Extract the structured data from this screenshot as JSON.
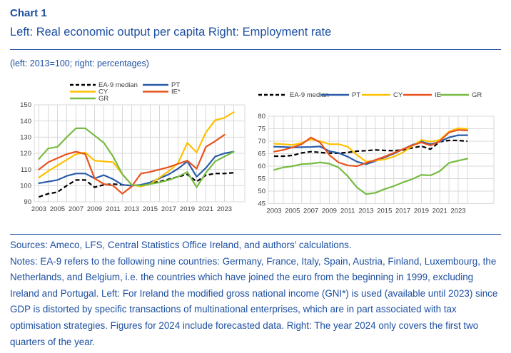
{
  "header": {
    "chart_label": "Chart 1",
    "title": "Left: Real economic output per capita Right: Employment rate",
    "units_note": "(left: 2013=100; right: percentages)"
  },
  "footer": {
    "sources": "Sources: Ameco, LFS, Central Statistics Office Ireland, and authors’ calculations.",
    "notes": "Notes: EA-9 refers to the following nine countries: Germany, France, Italy, Spain, Austria, Finland, Luxembourg, the Netherlands, and Belgium, i.e. the countries which have joined the euro from the beginning in 1999, excluding Ireland and Portugal. Left: For Ireland the modified gross national income (GNI*) is used (available until 2023) since GDP is distorted by specific transactions of multinational enterprises, which are in part associated with tax optimisation strategies. Figures for 2024 include forecasted data. Right: The year 2024 only covers the first two quarters of the year."
  },
  "style_colors": {
    "heading_blue": "#1d4fa0",
    "grid": "#d9d9d9",
    "tick_text": "#404040"
  },
  "chart_data": [
    {
      "type": "line",
      "title": "Real economic output per capita",
      "ylabel": "index (2013=100)",
      "ylim": [
        90,
        150
      ],
      "yticks": [
        90,
        100,
        110,
        120,
        130,
        140,
        150
      ],
      "x": [
        2003,
        2004,
        2005,
        2006,
        2007,
        2008,
        2009,
        2010,
        2011,
        2012,
        2013,
        2014,
        2015,
        2016,
        2017,
        2018,
        2019,
        2020,
        2021,
        2022,
        2023,
        2024
      ],
      "xtick_labels": [
        "2003",
        "2005",
        "2007",
        "2009",
        "2011",
        "2013",
        "2015",
        "2017",
        "2019",
        "2021",
        "2023"
      ],
      "grid": true,
      "legend_position": "top-two-columns",
      "series": [
        {
          "name": "EA-9 median",
          "color": "#000000",
          "dashed": true,
          "values": [
            93,
            95,
            96,
            100,
            103.5,
            103.5,
            99,
            100.5,
            101,
            100.5,
            100,
            100.5,
            101.5,
            102.5,
            104,
            105.5,
            107,
            102.5,
            106.5,
            107.5,
            107.5,
            108
          ]
        },
        {
          "name": "PT",
          "color": "#2a5caa",
          "dashed": false,
          "values": [
            101.5,
            102.5,
            103.5,
            106,
            107.5,
            107.5,
            104.5,
            106.5,
            104,
            100.5,
            100,
            100.5,
            102,
            104.5,
            107,
            110.5,
            115,
            105.5,
            111,
            118,
            120,
            121
          ]
        },
        {
          "name": "CY",
          "color": "#ffc000",
          "dashed": false,
          "values": [
            105,
            109,
            112.5,
            116,
            119.5,
            120.5,
            115.5,
            115,
            114.5,
            107,
            100.5,
            99.5,
            101,
            105,
            109,
            114,
            126.5,
            120.5,
            133,
            140.5,
            142,
            145.5
          ]
        },
        {
          "name": "IE*",
          "color": "#e8531e",
          "dashed": false,
          "values": [
            110,
            114.5,
            117,
            119.5,
            121,
            119.5,
            104.5,
            101,
            100,
            95,
            99.5,
            107.5,
            108.5,
            110,
            111.5,
            113.5,
            115.5,
            110.5,
            124,
            127.5,
            131.5,
            null
          ]
        },
        {
          "name": "GR",
          "color": "#77bc42",
          "dashed": false,
          "values": [
            116.5,
            123,
            124,
            130,
            135.5,
            135.5,
            131,
            126.5,
            118,
            107,
            100.5,
            100,
            101,
            102,
            103.5,
            105.5,
            108.5,
            99,
            108,
            115,
            118,
            121
          ]
        }
      ]
    },
    {
      "type": "line",
      "title": "Employment rate",
      "ylabel": "percentages",
      "ylim": [
        45,
        80
      ],
      "yticks": [
        45,
        50,
        55,
        60,
        65,
        70,
        75,
        80
      ],
      "x": [
        2003,
        2004,
        2005,
        2006,
        2007,
        2008,
        2009,
        2010,
        2011,
        2012,
        2013,
        2014,
        2015,
        2016,
        2017,
        2018,
        2019,
        2020,
        2021,
        2022,
        2023,
        2024
      ],
      "xtick_labels": [
        "2003",
        "2005",
        "2007",
        "2009",
        "2011",
        "2013",
        "2015",
        "2017",
        "2019",
        "2021",
        "2023"
      ],
      "grid": true,
      "legend_position": "top-row",
      "series": [
        {
          "name": "EA-9 median",
          "color": "#000000",
          "dashed": true,
          "values": [
            64,
            64,
            64.3,
            65.3,
            65.8,
            65.5,
            65.2,
            65.2,
            65.5,
            66,
            66.2,
            66.5,
            66.3,
            66.2,
            66.5,
            67.3,
            68,
            66.8,
            69.8,
            70.3,
            70.3,
            70
          ]
        },
        {
          "name": "PT",
          "color": "#2a5caa",
          "dashed": false,
          "values": [
            67.8,
            67.7,
            67.5,
            67.6,
            67.7,
            67.9,
            66,
            65.3,
            63.8,
            61.8,
            60.8,
            62,
            63.5,
            65,
            66.8,
            68.5,
            69.8,
            68.8,
            69.8,
            71.5,
            72.4,
            72.4
          ]
        },
        {
          "name": "CY",
          "color": "#ffc000",
          "dashed": false,
          "values": [
            69,
            68.8,
            68.5,
            69.3,
            70.8,
            70,
            68.8,
            68.8,
            67.8,
            64.5,
            61.8,
            62.2,
            62.7,
            63.8,
            65.5,
            68,
            70.5,
            69.8,
            70.5,
            73.8,
            75.2,
            74.9
          ]
        },
        {
          "name": "IE",
          "color": "#e8531e",
          "dashed": false,
          "values": [
            65.8,
            66.5,
            67.5,
            68.8,
            71.5,
            69.5,
            64.5,
            61.5,
            60.3,
            60,
            61.3,
            62.5,
            63.8,
            65.3,
            66.8,
            68.3,
            69.5,
            68.3,
            70,
            73.5,
            74.5,
            74.3
          ]
        },
        {
          "name": "GR",
          "color": "#77bc42",
          "dashed": false,
          "values": [
            58.5,
            59.5,
            60,
            60.8,
            61,
            61.5,
            61,
            59.5,
            56,
            51.5,
            48.8,
            49.3,
            50.8,
            52,
            53.5,
            54.8,
            56.5,
            56.3,
            58,
            61.3,
            62.2,
            63
          ]
        }
      ]
    }
  ]
}
